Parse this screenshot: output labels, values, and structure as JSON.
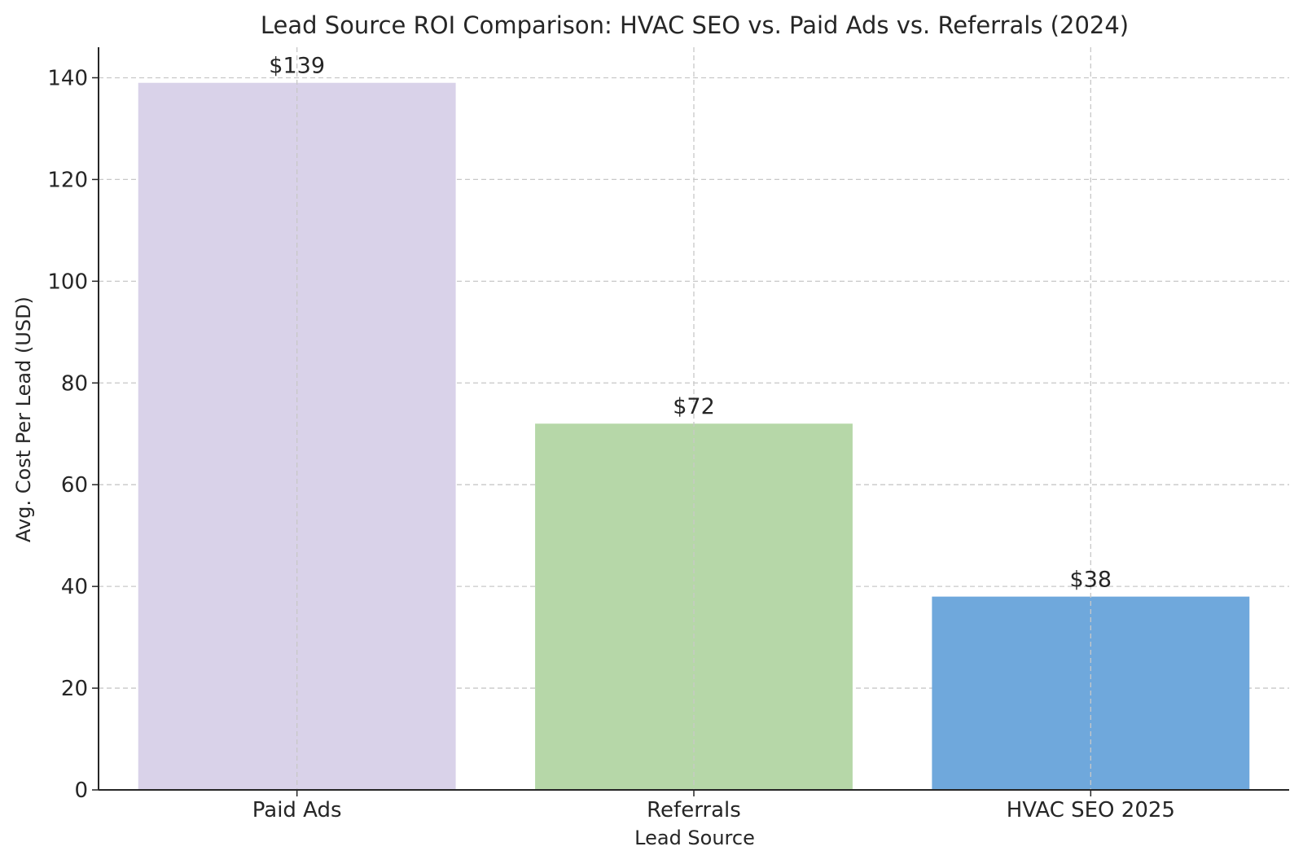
{
  "chart_data": {
    "type": "bar",
    "title": "Lead Source ROI Comparison: HVAC SEO vs. Paid Ads vs. Referrals (2024)",
    "xlabel": "Lead Source",
    "ylabel": "Avg. Cost Per Lead (USD)",
    "categories": [
      "Paid Ads",
      "Referrals",
      "HVAC SEO 2025"
    ],
    "values": [
      139,
      72,
      38
    ],
    "data_labels": [
      "$139",
      "$72",
      "$38"
    ],
    "colors": [
      "#d9d2e9",
      "#b6d7a8",
      "#6fa8dc"
    ],
    "ylim": [
      0,
      146
    ],
    "yticks": [
      0,
      20,
      40,
      60,
      80,
      100,
      120,
      140
    ],
    "grid": true,
    "legend": "none"
  }
}
